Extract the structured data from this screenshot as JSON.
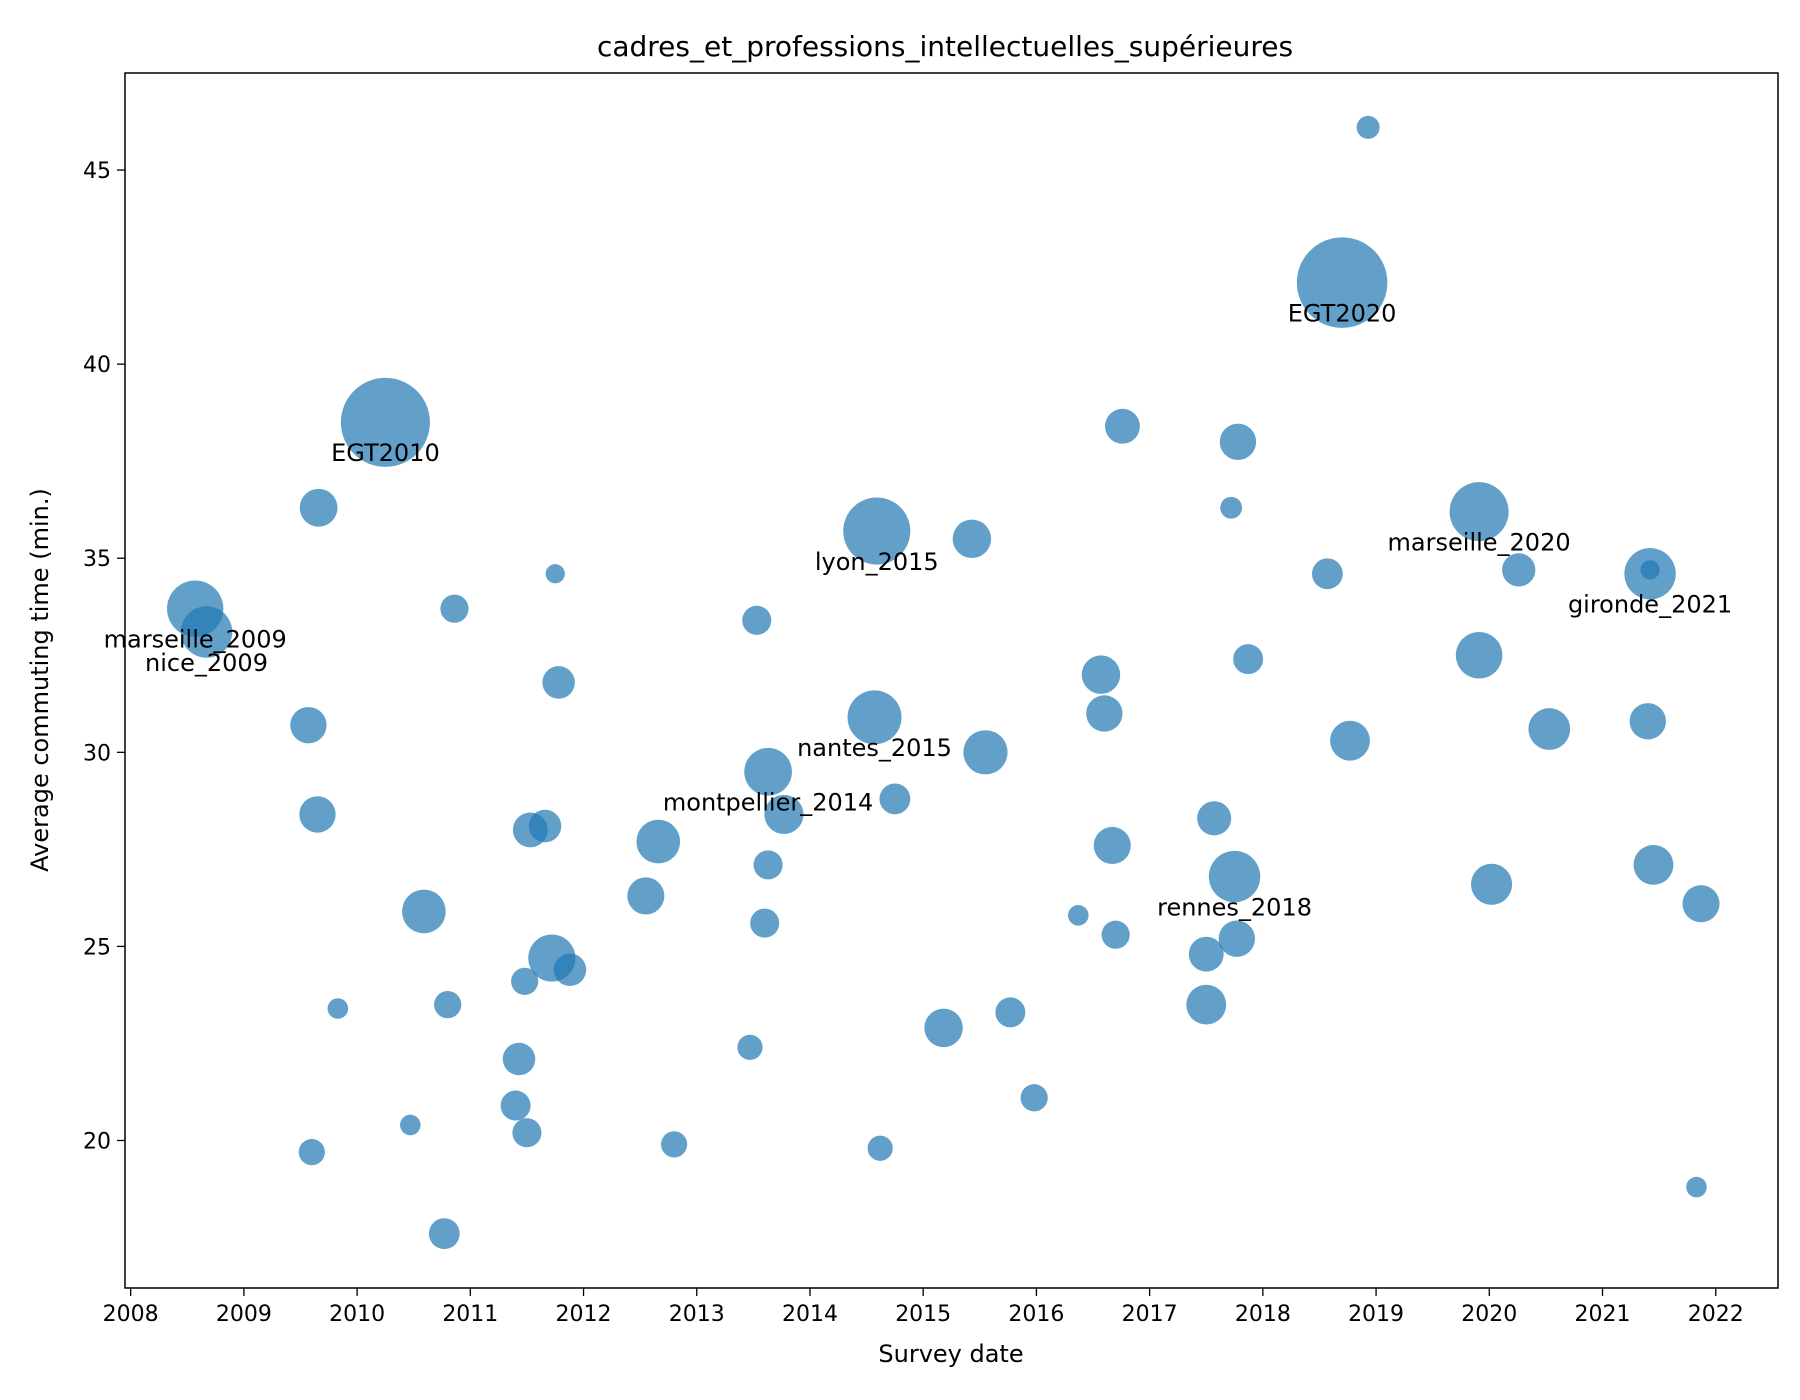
{
  "chart_data": {
    "type": "scatter",
    "title": "cadres_et_professions_intellectuelles_supérieures",
    "xlabel": "Survey date",
    "ylabel": "Average commuting time (min.)",
    "xlim": [
      2007.95,
      2022.55
    ],
    "ylim": [
      16.2,
      47.5
    ],
    "xticks": [
      "2008",
      "2009",
      "2010",
      "2011",
      "2012",
      "2013",
      "2014",
      "2015",
      "2016",
      "2017",
      "2018",
      "2019",
      "2020",
      "2021",
      "2022"
    ],
    "yticks": [
      "20",
      "25",
      "30",
      "35",
      "40",
      "45"
    ],
    "grid": false,
    "legend": "none",
    "color": "#1f77b4",
    "size_note": "bubble area proportional to relative survey sample size",
    "points": [
      {
        "x": 2008.57,
        "y": 33.7,
        "size": 6
      },
      {
        "x": 2008.67,
        "y": 33.1,
        "size": 5
      },
      {
        "x": 2009.57,
        "y": 30.7,
        "size": 2.5
      },
      {
        "x": 2009.6,
        "y": 19.7,
        "size": 1.3
      },
      {
        "x": 2009.65,
        "y": 28.4,
        "size": 2.5
      },
      {
        "x": 2009.66,
        "y": 36.3,
        "size": 2.7
      },
      {
        "x": 2009.83,
        "y": 23.4,
        "size": 0.8
      },
      {
        "x": 2010.25,
        "y": 38.5,
        "size": 15
      },
      {
        "x": 2010.47,
        "y": 20.4,
        "size": 0.8
      },
      {
        "x": 2010.59,
        "y": 25.9,
        "size": 3.6
      },
      {
        "x": 2010.77,
        "y": 17.6,
        "size": 1.8
      },
      {
        "x": 2010.8,
        "y": 23.5,
        "size": 1.4
      },
      {
        "x": 2010.86,
        "y": 33.7,
        "size": 1.5
      },
      {
        "x": 2011.4,
        "y": 20.9,
        "size": 1.7
      },
      {
        "x": 2011.43,
        "y": 22.1,
        "size": 2.0
      },
      {
        "x": 2011.48,
        "y": 24.1,
        "size": 1.4
      },
      {
        "x": 2011.5,
        "y": 20.2,
        "size": 1.6
      },
      {
        "x": 2011.53,
        "y": 28.0,
        "size": 2.3
      },
      {
        "x": 2011.66,
        "y": 28.1,
        "size": 2.0
      },
      {
        "x": 2011.72,
        "y": 24.7,
        "size": 4.2
      },
      {
        "x": 2011.75,
        "y": 34.6,
        "size": 0.7
      },
      {
        "x": 2011.78,
        "y": 31.8,
        "size": 2.0
      },
      {
        "x": 2011.88,
        "y": 24.4,
        "size": 2.0
      },
      {
        "x": 2012.55,
        "y": 26.3,
        "size": 2.6
      },
      {
        "x": 2012.66,
        "y": 27.7,
        "size": 3.6
      },
      {
        "x": 2012.8,
        "y": 19.9,
        "size": 1.3
      },
      {
        "x": 2013.47,
        "y": 22.4,
        "size": 1.2
      },
      {
        "x": 2013.53,
        "y": 33.4,
        "size": 1.6
      },
      {
        "x": 2013.6,
        "y": 25.6,
        "size": 1.6
      },
      {
        "x": 2013.63,
        "y": 27.1,
        "size": 1.6
      },
      {
        "x": 2013.63,
        "y": 29.5,
        "size": 4.3
      },
      {
        "x": 2013.77,
        "y": 28.4,
        "size": 2.9
      },
      {
        "x": 2014.57,
        "y": 30.9,
        "size": 5.5
      },
      {
        "x": 2014.59,
        "y": 35.7,
        "size": 8.5
      },
      {
        "x": 2014.62,
        "y": 19.8,
        "size": 1.2
      },
      {
        "x": 2014.75,
        "y": 28.8,
        "size": 1.8
      },
      {
        "x": 2015.18,
        "y": 22.9,
        "size": 2.8
      },
      {
        "x": 2015.43,
        "y": 35.5,
        "size": 2.8
      },
      {
        "x": 2015.55,
        "y": 30.0,
        "size": 3.7
      },
      {
        "x": 2015.77,
        "y": 23.3,
        "size": 1.7
      },
      {
        "x": 2015.98,
        "y": 21.1,
        "size": 1.4
      },
      {
        "x": 2016.37,
        "y": 25.8,
        "size": 0.8
      },
      {
        "x": 2016.57,
        "y": 32.0,
        "size": 2.8
      },
      {
        "x": 2016.6,
        "y": 31.0,
        "size": 2.5
      },
      {
        "x": 2016.67,
        "y": 27.6,
        "size": 2.6
      },
      {
        "x": 2016.7,
        "y": 25.3,
        "size": 1.5
      },
      {
        "x": 2016.76,
        "y": 38.4,
        "size": 2.3
      },
      {
        "x": 2017.5,
        "y": 23.5,
        "size": 3.0
      },
      {
        "x": 2017.5,
        "y": 24.8,
        "size": 2.3
      },
      {
        "x": 2017.57,
        "y": 28.3,
        "size": 2.2
      },
      {
        "x": 2017.72,
        "y": 36.3,
        "size": 0.9
      },
      {
        "x": 2017.75,
        "y": 26.8,
        "size": 5.0
      },
      {
        "x": 2017.77,
        "y": 25.2,
        "size": 2.5
      },
      {
        "x": 2017.78,
        "y": 38.0,
        "size": 2.5
      },
      {
        "x": 2017.87,
        "y": 32.4,
        "size": 1.7
      },
      {
        "x": 2018.57,
        "y": 34.6,
        "size": 1.8
      },
      {
        "x": 2018.7,
        "y": 42.1,
        "size": 15.5
      },
      {
        "x": 2018.77,
        "y": 30.3,
        "size": 3.0
      },
      {
        "x": 2018.93,
        "y": 46.1,
        "size": 1.0
      },
      {
        "x": 2019.91,
        "y": 36.2,
        "size": 6.6
      },
      {
        "x": 2019.91,
        "y": 32.5,
        "size": 4.1
      },
      {
        "x": 2020.02,
        "y": 26.6,
        "size": 3.2
      },
      {
        "x": 2020.26,
        "y": 34.7,
        "size": 2.1
      },
      {
        "x": 2020.53,
        "y": 30.6,
        "size": 3.3
      },
      {
        "x": 2021.4,
        "y": 30.8,
        "size": 2.5
      },
      {
        "x": 2021.42,
        "y": 34.6,
        "size": 5.0
      },
      {
        "x": 2021.42,
        "y": 34.7,
        "size": 0.7
      },
      {
        "x": 2021.45,
        "y": 27.1,
        "size": 3.0
      },
      {
        "x": 2021.83,
        "y": 18.8,
        "size": 0.8
      },
      {
        "x": 2021.87,
        "y": 26.1,
        "size": 2.6
      }
    ],
    "annotations": [
      {
        "text": "EGT2010",
        "x": 2010.25,
        "y": 37.5
      },
      {
        "text": "EGT2020",
        "x": 2018.7,
        "y": 41.1
      },
      {
        "text": "marseille_2009",
        "x": 2008.57,
        "y": 32.7
      },
      {
        "text": "nice_2009",
        "x": 2008.67,
        "y": 32.1
      },
      {
        "text": "lyon_2015",
        "x": 2014.59,
        "y": 34.7
      },
      {
        "text": "nantes_2015",
        "x": 2014.57,
        "y": 29.9
      },
      {
        "text": "montpellier_2014",
        "x": 2013.63,
        "y": 28.5
      },
      {
        "text": "rennes_2018",
        "x": 2017.75,
        "y": 25.8
      },
      {
        "text": "marseille_2020",
        "x": 2019.91,
        "y": 35.2
      },
      {
        "text": "gironde_2021",
        "x": 2021.42,
        "y": 33.6
      }
    ]
  }
}
